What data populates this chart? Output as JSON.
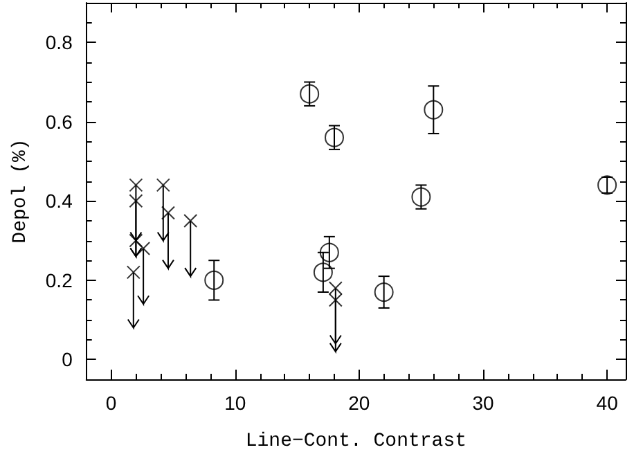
{
  "chart_data": {
    "type": "scatter",
    "xlabel": "Line−Cont. Contrast",
    "ylabel": "Depol (%)",
    "xlim": [
      -2,
      41.5
    ],
    "xticks": [
      0,
      10,
      20,
      30,
      40
    ],
    "ylim": [
      -0.05,
      0.9
    ],
    "yticks": [
      0,
      0.2,
      0.4,
      0.6,
      0.8
    ],
    "grid": false,
    "series": [
      {
        "color": "#000000",
        "marker": "circle",
        "x": [
          8.3,
          16.0,
          18.0,
          17.1,
          17.6,
          22.0,
          25.0,
          26.0,
          40.0
        ],
        "values": [
          0.2,
          0.67,
          0.56,
          0.22,
          0.27,
          0.17,
          0.41,
          0.63,
          0.44
        ],
        "errors": [
          0.05,
          0.03,
          0.03,
          0.05,
          0.04,
          0.04,
          0.03,
          0.06,
          0.02
        ]
      },
      {
        "color": "#000000",
        "marker": "cross",
        "x": [
          1.8,
          2.0,
          2.0,
          2.0,
          2.6,
          4.2,
          4.6,
          6.4,
          18.1,
          18.1
        ],
        "values": [
          0.22,
          0.44,
          0.4,
          0.3,
          0.28,
          0.44,
          0.37,
          0.35,
          0.18,
          0.15
        ],
        "errors": [
          [
            0.08,
            0.22
          ],
          [
            0.3,
            0.44
          ],
          [
            0.26,
            0.4
          ],
          [
            0.26,
            0.3
          ],
          [
            0.14,
            0.28
          ],
          [
            0.3,
            0.44
          ],
          [
            0.23,
            0.37
          ],
          [
            0.21,
            0.35
          ],
          [
            0.02,
            0.18
          ],
          [
            0.04,
            0.15
          ]
        ]
      }
    ]
  }
}
